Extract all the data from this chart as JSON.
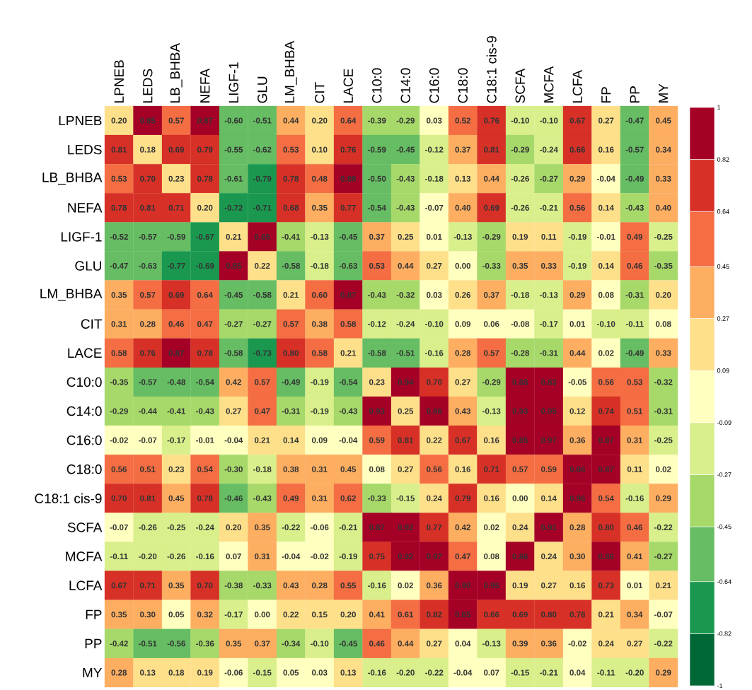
{
  "chart_data": {
    "type": "heatmap",
    "categories": [
      "LPNEB",
      "LEDS",
      "LB_BHBA",
      "NEFA",
      "LIGF-1",
      "GLU",
      "LM_BHBA",
      "CIT",
      "LACE",
      "C10:0",
      "C14:0",
      "C16:0",
      "C18:0",
      "C18:1 cis-9",
      "SCFA",
      "MCFA",
      "LCFA",
      "FP",
      "PP",
      "MY"
    ],
    "y_categories": [
      "LPNEB",
      "LEDS",
      "LB_BHBA",
      "NEFA",
      "LIGF-1",
      "GLU",
      "LM_BHBA",
      "CIT",
      "LACE",
      "C10:0",
      "C14:0",
      "C16:0",
      "C18:0",
      "C18:1 cis-9",
      "SCFA",
      "MCFA",
      "LCFA",
      "FP",
      "PP",
      "MY"
    ],
    "cells": [
      [
        0.2,
        0.85,
        0.57,
        0.87,
        -0.6,
        -0.51,
        0.44,
        0.2,
        0.64,
        -0.39,
        -0.29,
        0.03,
        0.52,
        0.76,
        -0.1,
        -0.1,
        0.67,
        0.27,
        -0.47,
        0.45
      ],
      [
        0.81,
        0.18,
        0.69,
        0.79,
        -0.55,
        -0.62,
        0.53,
        0.1,
        0.76,
        -0.59,
        -0.45,
        -0.12,
        0.37,
        0.81,
        -0.29,
        -0.24,
        0.66,
        0.16,
        -0.57,
        0.34
      ],
      [
        0.53,
        0.7,
        0.23,
        0.78,
        -0.61,
        -0.79,
        0.78,
        0.48,
        0.88,
        -0.5,
        -0.43,
        -0.18,
        0.13,
        0.44,
        -0.26,
        -0.27,
        0.29,
        -0.04,
        -0.49,
        0.33
      ],
      [
        0.78,
        0.81,
        0.71,
        0.2,
        -0.72,
        -0.71,
        0.68,
        0.35,
        0.77,
        -0.54,
        -0.43,
        -0.07,
        0.4,
        0.69,
        -0.26,
        -0.21,
        0.56,
        0.14,
        -0.43,
        0.4
      ],
      [
        -0.52,
        -0.57,
        -0.59,
        -0.67,
        0.21,
        0.85,
        -0.41,
        -0.13,
        -0.45,
        0.37,
        0.25,
        0.01,
        -0.13,
        -0.29,
        0.19,
        0.11,
        -0.19,
        -0.01,
        0.49,
        -0.25
      ],
      [
        -0.47,
        -0.63,
        -0.77,
        -0.69,
        0.85,
        0.22,
        -0.58,
        -0.18,
        -0.63,
        0.53,
        0.44,
        0.27,
        0.0,
        -0.33,
        0.35,
        0.33,
        -0.19,
        0.14,
        0.46,
        -0.35
      ],
      [
        0.35,
        0.57,
        0.69,
        0.64,
        -0.45,
        -0.58,
        0.21,
        0.6,
        0.87,
        -0.43,
        -0.32,
        0.03,
        0.26,
        0.37,
        -0.18,
        -0.13,
        0.29,
        0.08,
        -0.31,
        0.2
      ],
      [
        0.31,
        0.28,
        0.46,
        0.47,
        -0.27,
        -0.27,
        0.57,
        0.38,
        0.58,
        -0.12,
        -0.24,
        -0.1,
        0.09,
        0.06,
        -0.08,
        -0.17,
        0.01,
        -0.1,
        -0.11,
        0.08
      ],
      [
        0.58,
        0.76,
        0.87,
        0.78,
        -0.58,
        -0.73,
        0.8,
        0.58,
        0.21,
        -0.58,
        -0.51,
        -0.16,
        0.28,
        0.57,
        -0.28,
        -0.31,
        0.44,
        0.02,
        -0.49,
        0.33
      ],
      [
        -0.35,
        -0.57,
        -0.48,
        -0.54,
        0.42,
        0.57,
        -0.49,
        -0.19,
        -0.54,
        0.23,
        0.94,
        0.7,
        0.27,
        -0.29,
        0.88,
        0.83,
        -0.05,
        0.56,
        0.53,
        -0.32
      ],
      [
        -0.29,
        -0.44,
        -0.41,
        -0.43,
        0.27,
        0.47,
        -0.31,
        -0.19,
        -0.43,
        0.93,
        0.25,
        0.86,
        0.43,
        -0.13,
        0.93,
        0.95,
        0.12,
        0.74,
        0.51,
        -0.31
      ],
      [
        -0.02,
        -0.07,
        -0.17,
        -0.01,
        -0.04,
        0.21,
        0.14,
        0.09,
        -0.04,
        0.59,
        0.81,
        0.22,
        0.67,
        0.16,
        0.85,
        0.97,
        0.36,
        0.87,
        0.31,
        -0.25
      ],
      [
        0.56,
        0.51,
        0.23,
        0.54,
        -0.3,
        -0.18,
        0.38,
        0.31,
        0.45,
        0.08,
        0.27,
        0.56,
        0.16,
        0.71,
        0.57,
        0.59,
        0.86,
        0.87,
        0.11,
        0.02
      ],
      [
        0.7,
        0.81,
        0.45,
        0.78,
        -0.46,
        -0.43,
        0.49,
        0.31,
        0.62,
        -0.33,
        -0.15,
        0.24,
        0.79,
        0.16,
        0.0,
        0.14,
        0.96,
        0.54,
        -0.16,
        0.29
      ],
      [
        -0.07,
        -0.26,
        -0.25,
        -0.24,
        0.2,
        0.35,
        -0.22,
        -0.06,
        -0.21,
        0.87,
        0.92,
        0.77,
        0.42,
        0.02,
        0.24,
        0.91,
        0.28,
        0.8,
        0.46,
        -0.22
      ],
      [
        -0.11,
        -0.2,
        -0.26,
        -0.16,
        0.07,
        0.31,
        -0.04,
        -0.02,
        -0.19,
        0.75,
        0.92,
        0.97,
        0.47,
        0.08,
        0.86,
        0.24,
        0.3,
        0.86,
        0.41,
        -0.27
      ],
      [
        0.67,
        0.71,
        0.35,
        0.7,
        -0.38,
        -0.33,
        0.43,
        0.28,
        0.55,
        -0.16,
        0.02,
        0.36,
        0.9,
        0.95,
        0.19,
        0.27,
        0.16,
        0.73,
        0.01,
        0.21
      ],
      [
        0.35,
        0.3,
        0.05,
        0.32,
        -0.17,
        0.0,
        0.22,
        0.15,
        0.2,
        0.41,
        0.61,
        0.82,
        0.85,
        0.66,
        0.69,
        0.8,
        0.78,
        0.21,
        0.34,
        -0.07
      ],
      [
        -0.42,
        -0.51,
        -0.56,
        -0.36,
        0.35,
        0.37,
        -0.34,
        -0.1,
        -0.45,
        0.46,
        0.44,
        0.27,
        0.04,
        -0.13,
        0.39,
        0.36,
        -0.02,
        0.24,
        0.27,
        -0.22
      ],
      [
        0.28,
        0.13,
        0.18,
        0.19,
        -0.06,
        -0.15,
        0.05,
        0.03,
        0.13,
        -0.16,
        -0.2,
        -0.22,
        -0.04,
        0.07,
        -0.15,
        -0.21,
        0.04,
        -0.11,
        -0.2,
        0.29
      ]
    ],
    "clim": [
      -1,
      1
    ],
    "cticks": [
      -1,
      -0.82,
      -0.64,
      -0.45,
      -0.27,
      -0.09,
      0.09,
      0.27,
      0.45,
      0.64,
      0.82,
      1
    ],
    "colors": [
      "#006837",
      "#1a9850",
      "#66bd63",
      "#a6d96a",
      "#d9ef8b",
      "#ffffbf",
      "#fee08b",
      "#fdae61",
      "#f46d43",
      "#d73027",
      "#a50026"
    ],
    "cell_labels": [
      [
        "0.20",
        "0.85",
        "0.57",
        "0.87",
        "-0.60",
        "-0.51",
        "0.44",
        "0.20",
        "0.64",
        "-0.39",
        "-0.29",
        "0.03",
        "0.52",
        "0.76",
        "-0.10",
        "-0.10",
        "0.67",
        "0.27",
        "-0.47",
        "0.45"
      ],
      [
        "0.81",
        "0.18",
        "0.69",
        "0.79",
        "-0.55",
        "-0.62",
        "0.53",
        "0.10",
        "0.76",
        "-0.59",
        "-0.45",
        "-0.12",
        "0.37",
        "0.81",
        "-0.29",
        "-0.24",
        "0.66",
        "0.16",
        "-0.57",
        "0.34"
      ],
      [
        "0.53",
        "0.70",
        "0.23",
        "0.78",
        "-0.61",
        "-0.79",
        "0.78",
        "0.48",
        "0.88",
        "-0.50",
        "-0.43",
        "-0.18",
        "0.13",
        "0.44",
        "-0.26",
        "-0.27",
        "0.29",
        "-0.04",
        "-0.49",
        "0.33"
      ],
      [
        "0.78",
        "0.81",
        "0.71",
        "0.20",
        "-0.72",
        "-0.71",
        "0.68",
        "0.35",
        "0.77",
        "-0.54",
        "-0.43",
        "-0.07",
        "0.40",
        "0.69",
        "-0.26",
        "-0.21",
        "0.56",
        "0.14",
        "-0.43",
        "0.40"
      ],
      [
        "-0.52",
        "-0.57",
        "-0.59",
        "-0.67",
        "0.21",
        "0.85",
        "-0.41",
        "-0.13",
        "-0.45",
        "0.37",
        "0.25",
        "0.01",
        "-0.13",
        "-0.29",
        "0.19",
        "0.11",
        "-0.19",
        "-0.01",
        "0.49",
        "-0.25"
      ],
      [
        "-0.47",
        "-0.63",
        "-0.77",
        "-0.69",
        "0.85",
        "0.22",
        "-0.58",
        "-0.18",
        "-0.63",
        "0.53",
        "0.44",
        "0.27",
        "0.00",
        "-0.33",
        "0.35",
        "0.33",
        "-0.19",
        "0.14",
        "0.46",
        "-0.35"
      ],
      [
        "0.35",
        "0.57",
        "0.69",
        "0.64",
        "-0.45",
        "-0.58",
        "0.21",
        "0.60",
        "0.87",
        "-0.43",
        "-0.32",
        "0.03",
        "0.26",
        "0.37",
        "-0.18",
        "-0.13",
        "0.29",
        "0.08",
        "-0.31",
        "0.20"
      ],
      [
        "0.31",
        "0.28",
        "0.46",
        "0.47",
        "-0.27",
        "-0.27",
        "0.57",
        "0.38",
        "0.58",
        "-0.12",
        "-0.24",
        "-0.10",
        "0.09",
        "0.06",
        "-0.08",
        "-0.17",
        "0.01",
        "-0.10",
        "-0.11",
        "0.08"
      ],
      [
        "0.58",
        "0.76",
        "0.87",
        "0.78",
        "-0.58",
        "-0.73",
        "0.80",
        "0.58",
        "0.21",
        "-0.58",
        "-0.51",
        "-0.16",
        "0.28",
        "0.57",
        "-0.28",
        "-0.31",
        "0.44",
        "0.02",
        "-0.49",
        "0.33"
      ],
      [
        "-0.35",
        "-0.57",
        "-0.48",
        "-0.54",
        "0.42",
        "0.57",
        "-0.49",
        "-0.19",
        "-0.54",
        "0.23",
        "0.94",
        "0.70",
        "0.27",
        "-0.29",
        "0.88",
        "0.83",
        "-0.05",
        "0.56",
        "0.53",
        "-0.32"
      ],
      [
        "-0.29",
        "-0.44",
        "-0.41",
        "-0.43",
        "0.27",
        "0.47",
        "-0.31",
        "-0.19",
        "-0.43",
        "0.93",
        "0.25",
        "0.86",
        "0.43",
        "-0.13",
        "0.93",
        "0.95",
        "0.12",
        "0.74",
        "0.51",
        "-0.31"
      ],
      [
        "-0.02",
        "-0.07",
        "-0.17",
        "-0.01",
        "-0.04",
        "0.21",
        "0.14",
        "0.09",
        "-0.04",
        "0.59",
        "0.81",
        "0.22",
        "0.67",
        "0.16",
        "0.85",
        "0.97",
        "0.36",
        "0.87",
        "0.31",
        "-0.25"
      ],
      [
        "0.56",
        "0.51",
        "0.23",
        "0.54",
        "-0.30",
        "-0.18",
        "0.38",
        "0.31",
        "0.45",
        "0.08",
        "0.27",
        "0.56",
        "0.16",
        "0.71",
        "0.57",
        "0.59",
        "0.86",
        "0.87",
        "0.11",
        "0.02"
      ],
      [
        "0.70",
        "0.81",
        "0.45",
        "0.78",
        "-0.46",
        "-0.43",
        "0.49",
        "0.31",
        "0.62",
        "-0.33",
        "-0.15",
        "0.24",
        "0.79",
        "0.16",
        "0.00",
        "0.14",
        "0.96",
        "0.54",
        "-0.16",
        "0.29"
      ],
      [
        "-0.07",
        "-0.26",
        "-0.25",
        "-0.24",
        "0.20",
        "0.35",
        "-0.22",
        "-0.06",
        "-0.21",
        "0.87",
        "0.92",
        "0.77",
        "0.42",
        "0.02",
        "0.24",
        "0.91",
        "0.28",
        "0.80",
        "0.46",
        "-0.22"
      ],
      [
        "-0.11",
        "-0.20",
        "-0.26",
        "-0.16",
        "0.07",
        "0.31",
        "-0.04",
        "-0.02",
        "-0.19",
        "0.75",
        "0.92",
        "0.97",
        "0.47",
        "0.08",
        "0.86",
        "0.24",
        "0.30",
        "0.86",
        "0.41",
        "-0.27"
      ],
      [
        "0.67",
        "0.71",
        "0.35",
        "0.70",
        "-0.38",
        "-0.33",
        "0.43",
        "0.28",
        "0.55",
        "-0.16",
        "0.02",
        "0.36",
        "0.90",
        "0.95",
        "0.19",
        "0.27",
        "0.16",
        "0.73",
        "0.01",
        "0.21"
      ],
      [
        "0.35",
        "0.30",
        "0.05",
        "0.32",
        "-0.17",
        "0.00",
        "0.22",
        "0.15",
        "0.20",
        "0.41",
        "0.61",
        "0.82",
        "0.85",
        "0.66",
        "0.69",
        "0.80",
        "0.78",
        "0.21",
        "0.34",
        "-0.07"
      ],
      [
        "-0.42",
        "-0.51",
        "-0.56",
        "-0.36",
        "0.35",
        "0.37",
        "-0.34",
        "-0.10",
        "-0.45",
        "0.46",
        "0.44",
        "0.27",
        "0.04",
        "-0.13",
        "0.39",
        "0.36",
        "-0.02",
        "0.24",
        "0.27",
        "-0.22"
      ],
      [
        "0.28",
        "0.13",
        "0.18",
        "0.19",
        "-0.06",
        "-0.15",
        "0.05",
        "0.03",
        "0.13",
        "-0.16",
        "-0.20",
        "-0.22",
        "-0.04",
        "0.07",
        "-0.15",
        "-0.21",
        "0.04",
        "-0.11",
        "-0.20",
        "0.29"
      ]
    ]
  }
}
